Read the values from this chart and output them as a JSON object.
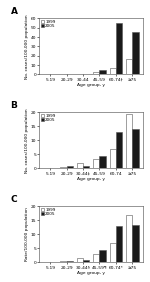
{
  "panels": [
    {
      "label": "A",
      "ylabel": "No. cases/100,000 population",
      "categories": [
        "5-19",
        "20-29",
        "30-44",
        "45-59",
        "60-74†",
        "≥75"
      ],
      "values_1999": [
        0.1,
        0.3,
        0.5,
        2.5,
        7.0,
        17.0
      ],
      "values_2005": [
        0.15,
        0.5,
        1.0,
        5.0,
        55.0,
        45.0
      ],
      "ylim": [
        0,
        60
      ],
      "yticks": [
        0,
        10,
        20,
        30,
        40,
        50,
        60
      ]
    },
    {
      "label": "B",
      "ylabel": "No. cases/100,000 population",
      "categories": [
        "5-19",
        "20-29",
        "30-44‡",
        "45-59",
        "60-74",
        "≥75"
      ],
      "values_1999": [
        0.2,
        0.6,
        2.0,
        3.5,
        7.0,
        19.5
      ],
      "values_2005": [
        0.3,
        0.8,
        1.0,
        4.5,
        13.0,
        14.0
      ],
      "ylim": [
        0,
        20
      ],
      "yticks": [
        0,
        5,
        10,
        15,
        20
      ]
    },
    {
      "label": "C",
      "ylabel": "Rate/100,000 population",
      "categories": [
        "5-19",
        "20-29",
        "30-44§",
        "45-59¶",
        "60-74*",
        "≥75"
      ],
      "values_1999": [
        0.1,
        0.4,
        1.5,
        3.0,
        7.0,
        17.0
      ],
      "values_2005": [
        0.2,
        0.5,
        0.8,
        4.5,
        13.0,
        13.5
      ],
      "ylim": [
        0,
        20
      ],
      "yticks": [
        0,
        5,
        10,
        15,
        20
      ]
    }
  ],
  "color_1999": "#ffffff",
  "color_2005": "#1a1a1a",
  "edgecolor": "#555555",
  "legend_labels": [
    "1999",
    "2005"
  ],
  "xlabel": "Age group, y",
  "bar_width": 0.38,
  "background_color": "#ffffff"
}
